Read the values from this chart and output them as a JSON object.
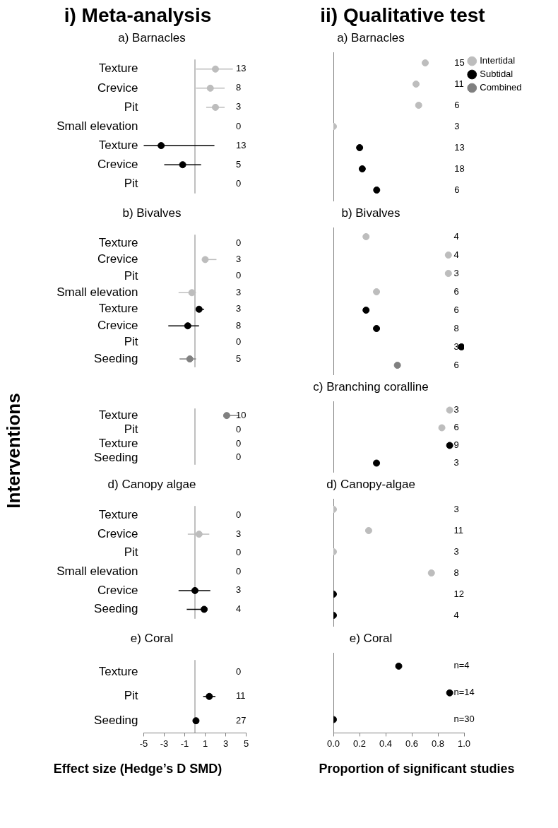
{
  "chart_data": [
    {
      "type": "scatter",
      "orientation": "horizontal",
      "title": "i) Meta-analysis",
      "subtitle": "a) Barnacles",
      "categories": [
        "Texture",
        "Crevice",
        "Pit",
        "Small elevation",
        "Texture",
        "Crevice",
        "Pit"
      ],
      "series": [
        {
          "color": "#bdbdbd",
          "values": [
            2.0,
            1.5,
            2.0,
            null,
            null,
            null,
            null
          ],
          "errors": [
            [
              0.1,
              3.7
            ],
            [
              0.1,
              2.9
            ],
            [
              1.1,
              2.9
            ],
            null,
            null,
            null,
            null
          ]
        },
        {
          "color": "#000000",
          "values": [
            null,
            null,
            null,
            null,
            -3.3,
            -1.2,
            null
          ],
          "errors": [
            null,
            null,
            null,
            null,
            [
              -5.0,
              1.9
            ],
            [
              -3.0,
              0.6
            ],
            null
          ]
        }
      ],
      "xlim": [
        -5,
        5
      ],
      "ref_lines": [
        {
          "axis": "x",
          "value": 0,
          "color": "#808080"
        }
      ],
      "annotations": [
        "13",
        "8",
        "3",
        "0",
        "13",
        "5",
        "0"
      ],
      "tick_labels": "y",
      "marker": "circle"
    },
    {
      "type": "scatter",
      "orientation": "horizontal",
      "title": "ii) Qualitative test",
      "subtitle": "a) Barnacles",
      "categories": [
        null,
        null,
        null,
        null,
        null,
        null,
        null
      ],
      "series": [
        {
          "name": "Intertidal",
          "color": "#bdbdbd",
          "values": [
            0.7,
            0.63,
            0.65,
            0,
            null,
            null,
            null
          ]
        },
        {
          "name": "Subtidal",
          "color": "#000000",
          "values": [
            null,
            null,
            null,
            null,
            0.2,
            0.22,
            0.33
          ]
        },
        {
          "name": "Combined",
          "color": "#808080",
          "values": [
            null,
            null,
            null,
            null,
            null,
            null,
            null
          ]
        }
      ],
      "xlim": [
        0,
        1
      ],
      "annotations": [
        "15",
        "11",
        "6",
        "3",
        "13",
        "18",
        "6"
      ],
      "tick_labels": false,
      "marker": "circle",
      "legend": "top right"
    },
    {
      "type": "scatter",
      "orientation": "horizontal",
      "subtitle": "b) Bivalves",
      "categories": [
        "Texture",
        "Crevice",
        "Pit",
        "Small elevation",
        "Texture",
        "Crevice",
        "Pit",
        "Seeding"
      ],
      "series": [
        {
          "color": "#bdbdbd",
          "values": [
            null,
            1.0,
            null,
            -0.3,
            null,
            null,
            null,
            null
          ],
          "errors": [
            null,
            [
              0.8,
              2.1
            ],
            null,
            [
              -1.6,
              0.1
            ],
            null,
            null,
            null,
            null
          ]
        },
        {
          "color": "#000000",
          "values": [
            null,
            null,
            null,
            null,
            0.4,
            -0.7,
            null,
            null
          ],
          "errors": [
            null,
            null,
            null,
            null,
            [
              0.1,
              0.9
            ],
            [
              -2.6,
              0.4
            ],
            null,
            null
          ]
        },
        {
          "color": "#808080",
          "values": [
            null,
            null,
            null,
            null,
            null,
            null,
            null,
            -0.5
          ],
          "errors": [
            null,
            null,
            null,
            null,
            null,
            null,
            null,
            [
              -1.5,
              0.1
            ]
          ]
        }
      ],
      "xlim": [
        -5,
        5
      ],
      "ref_lines": [
        {
          "axis": "x",
          "value": 0,
          "color": "#808080"
        }
      ],
      "annotations": [
        "0",
        "3",
        "0",
        "3",
        "3",
        "8",
        "0",
        "5"
      ],
      "tick_labels": "y",
      "marker": "circle"
    },
    {
      "type": "scatter",
      "orientation": "horizontal",
      "subtitle": "b) Bivalves",
      "categories": [
        null,
        null,
        null,
        null,
        null,
        null,
        null,
        null
      ],
      "series": [
        {
          "color": "#bdbdbd",
          "values": [
            0.25,
            0.88,
            0.88,
            0.33,
            null,
            null,
            null,
            null
          ]
        },
        {
          "color": "#000000",
          "values": [
            null,
            null,
            null,
            null,
            0.25,
            0.33,
            0.98,
            null
          ]
        },
        {
          "color": "#808080",
          "values": [
            null,
            null,
            null,
            null,
            null,
            null,
            null,
            0.49
          ]
        }
      ],
      "xlim": [
        0,
        1
      ],
      "annotations": [
        "4",
        "4",
        "3",
        "6",
        "6",
        "8",
        "3",
        "6"
      ],
      "tick_labels": false,
      "marker": "circle"
    },
    {
      "type": "scatter",
      "orientation": "horizontal",
      "ylabel": "Interventions",
      "categories": [
        "Texture",
        "Pit",
        "Texture",
        "Seeding"
      ],
      "series": [
        {
          "color": "#808080",
          "values": [
            3.1,
            null,
            null,
            null
          ],
          "errors": [
            [
              2.9,
              4.3
            ],
            null,
            null,
            null
          ]
        }
      ],
      "xlim": [
        -5,
        5
      ],
      "ref_lines": [
        {
          "axis": "x",
          "value": 0,
          "color": "#808080"
        }
      ],
      "annotations": [
        "10",
        "0",
        "0",
        "0"
      ],
      "tick_labels": "y",
      "marker": "circle"
    },
    {
      "type": "scatter",
      "orientation": "horizontal",
      "subtitle": "c) Branching coralline",
      "categories": [
        null,
        null,
        null,
        null
      ],
      "series": [
        {
          "color": "#bdbdbd",
          "values": [
            0.89,
            0.83,
            null,
            null
          ]
        },
        {
          "color": "#000000",
          "values": [
            null,
            null,
            0.89,
            0.33
          ]
        }
      ],
      "xlim": [
        0,
        1
      ],
      "annotations": [
        "3",
        "6",
        "9",
        "3"
      ],
      "tick_labels": false,
      "marker": "circle"
    },
    {
      "type": "scatter",
      "orientation": "horizontal",
      "subtitle": "d) Canopy algae",
      "categories": [
        "Texture",
        "Crevice",
        "Pit",
        "Small elevation",
        "Crevice",
        "Seeding"
      ],
      "series": [
        {
          "color": "#bdbdbd",
          "values": [
            null,
            0.4,
            null,
            null,
            null,
            null
          ],
          "errors": [
            null,
            [
              -0.7,
              1.4
            ],
            null,
            null,
            null,
            null
          ]
        },
        {
          "color": "#000000",
          "values": [
            null,
            null,
            null,
            null,
            0.0,
            0.9
          ],
          "errors": [
            null,
            null,
            null,
            null,
            [
              -1.6,
              1.5
            ],
            [
              -0.8,
              1.1
            ]
          ]
        }
      ],
      "xlim": [
        -5,
        5
      ],
      "ref_lines": [
        {
          "axis": "x",
          "value": 0,
          "color": "#808080"
        }
      ],
      "annotations": [
        "0",
        "3",
        "0",
        "0",
        "3",
        "4"
      ],
      "tick_labels": "y",
      "marker": "circle"
    },
    {
      "type": "scatter",
      "orientation": "horizontal",
      "subtitle": "d) Canopy-algae",
      "categories": [
        null,
        null,
        null,
        null,
        null,
        null
      ],
      "series": [
        {
          "color": "#bdbdbd",
          "values": [
            0,
            0.27,
            0,
            0.75,
            null,
            null
          ]
        },
        {
          "color": "#000000",
          "values": [
            null,
            null,
            null,
            null,
            0,
            0
          ]
        }
      ],
      "xlim": [
        0,
        1
      ],
      "annotations": [
        "3",
        "11",
        "3",
        "8",
        "12",
        "4"
      ],
      "tick_labels": false,
      "marker": "circle"
    },
    {
      "type": "scatter",
      "orientation": "horizontal",
      "subtitle": "e) Coral",
      "xlabel": "Effect size (Hedge’s D SMD)",
      "categories": [
        "Texture",
        "Pit",
        "Seeding"
      ],
      "series": [
        {
          "color": "#000000",
          "values": [
            null,
            1.4,
            0.1
          ],
          "errors": [
            null,
            [
              0.8,
              2.0
            ],
            null
          ]
        }
      ],
      "xlim": [
        -5,
        5
      ],
      "xticks": [
        -5,
        -3,
        -1,
        1,
        3,
        5
      ],
      "ref_lines": [
        {
          "axis": "x",
          "value": 0,
          "color": "#808080"
        }
      ],
      "annotations": [
        "0",
        "11",
        "27"
      ],
      "marker": "circle"
    },
    {
      "type": "scatter",
      "orientation": "horizontal",
      "subtitle": "e) Coral",
      "xlabel": "Proportion of significant studies",
      "categories": [
        null,
        null,
        null
      ],
      "series": [
        {
          "color": "#000000",
          "values": [
            0.5,
            0.89,
            0
          ]
        }
      ],
      "xlim": [
        0,
        1
      ],
      "xticks": [
        {
          "value": 0,
          "label": "0.0"
        },
        {
          "value": 0.2,
          "label": "0.2"
        },
        {
          "value": 0.4,
          "label": "0.4"
        },
        {
          "value": 0.6,
          "label": "0.6"
        },
        {
          "value": 0.8,
          "label": "0.8"
        },
        {
          "value": 1,
          "label": "1.0"
        }
      ],
      "annotations": [
        "n=4",
        "n=14",
        "n=30"
      ],
      "tick_labels": "x",
      "marker": "circle"
    }
  ]
}
